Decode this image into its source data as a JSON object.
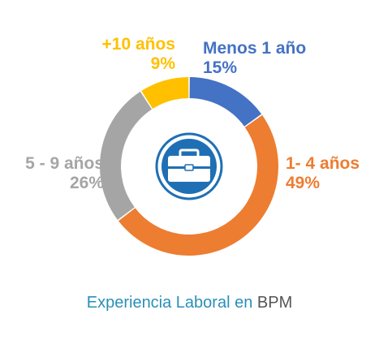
{
  "chart_data": {
    "type": "pie",
    "donut": true,
    "categories": [
      "Menos 1 año",
      "1- 4 años",
      "5 - 9 años",
      "+10 años"
    ],
    "values": [
      15,
      49,
      26,
      9
    ],
    "value_labels": [
      "15%",
      "49%",
      "26%",
      "9%"
    ],
    "colors": [
      "#4472C4",
      "#ED7D31",
      "#A5A5A5",
      "#FFC000"
    ],
    "center_icon": "briefcase-icon",
    "center_icon_color": "#1F6FB5"
  },
  "caption": {
    "part1": "Experiencia Laboral en ",
    "part2": "BPM",
    "part1_color": "#2A8FB8",
    "part2_color": "#555555"
  }
}
